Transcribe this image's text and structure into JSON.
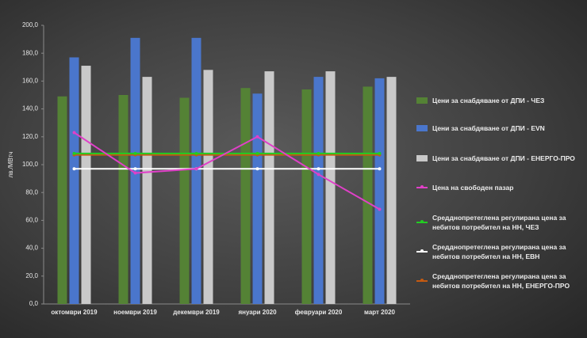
{
  "chart_data": {
    "type": "bar",
    "y_label": "лв./МВтч",
    "categories": [
      "октомври 2019",
      "ноември 2019",
      "декември 2019",
      "януари 2020",
      "февруари 2020",
      "март 2020"
    ],
    "ylim": [
      0,
      200
    ],
    "yticks": [
      {
        "value": 0,
        "label": "0,0"
      },
      {
        "value": 20,
        "label": "20,0"
      },
      {
        "value": 40,
        "label": "40,0"
      },
      {
        "value": 60,
        "label": "60,0"
      },
      {
        "value": 80,
        "label": "80,0"
      },
      {
        "value": 100,
        "label": "100,0"
      },
      {
        "value": 120,
        "label": "120,0"
      },
      {
        "value": 140,
        "label": "140,0"
      },
      {
        "value": 160,
        "label": "160,0"
      },
      {
        "value": 180,
        "label": "180,0"
      },
      {
        "value": 200,
        "label": "200,0"
      }
    ],
    "grid": false,
    "series": [
      {
        "name": "Цени за снабдяване от ДПИ - ЧЕЗ",
        "type": "bar",
        "color": "#548235",
        "values": [
          149,
          150,
          148,
          155,
          154,
          156
        ]
      },
      {
        "name": "Цени за снабдяване от ДПИ - EVN",
        "type": "bar",
        "color": "#4a76cc",
        "values": [
          177,
          191,
          191,
          151,
          163,
          162
        ]
      },
      {
        "name": "Цени за снабдяване от ДПИ - ЕНЕРГО-ПРО",
        "type": "bar",
        "color": "#c9c9c9",
        "values": [
          171,
          163,
          168,
          167,
          167,
          163
        ]
      },
      {
        "name": "Цена на свободен пазар",
        "type": "line",
        "color": "#e040c8",
        "values": [
          123,
          94,
          97,
          120,
          93,
          68
        ]
      },
      {
        "name": "Средднопретеглена регулирана цена за небитов потребител на НН, ЧЕЗ",
        "type": "line",
        "color": "#22cc22",
        "values": [
          108,
          108,
          108,
          108,
          108,
          108
        ]
      },
      {
        "name": "Средднопретеглена регулирана цена за небитов потребител на НН, ЕВН",
        "type": "line",
        "color": "#ffffff",
        "values": [
          97,
          97,
          97,
          97,
          97,
          97
        ]
      },
      {
        "name": "Средднопретеглена регулирана цена за небитов потребител на НН, ЕНЕРГО-ПРО",
        "type": "line",
        "color": "#c55a11",
        "values": [
          107,
          107,
          107,
          107,
          107,
          107
        ]
      }
    ]
  }
}
